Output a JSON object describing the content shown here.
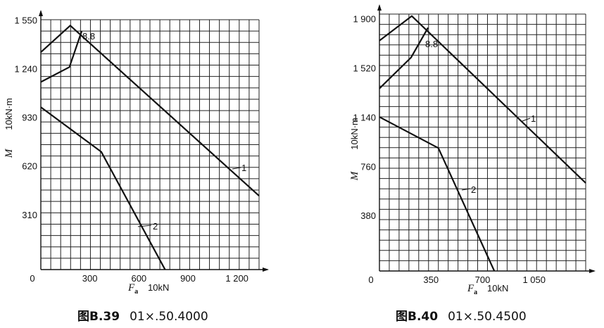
{
  "chart_data": [
    {
      "type": "line",
      "caption_prefix": "图B.39",
      "caption_code": "01×.50.4000",
      "ylabel": "M",
      "yunit": "10kN·m",
      "xlabel": "F",
      "xlabel_sub": "a",
      "xunit": "10kN",
      "origin_label": "0",
      "x_ticks": [
        300,
        600,
        900,
        1200
      ],
      "x_tick_labels": [
        "300",
        "600",
        "900",
        "1 200"
      ],
      "y_ticks": [
        310,
        620,
        930,
        1240,
        1550
      ],
      "y_tick_labels": [
        "310",
        "620",
        "930",
        "1 240",
        "1 550"
      ],
      "xlim": [
        0,
        1335
      ],
      "ylim": [
        0,
        1592
      ],
      "grid": true,
      "series": [
        {
          "name": "1",
          "points": [
            [
              0,
              1385
            ],
            [
              180,
              1555
            ],
            [
              1335,
              470
            ]
          ]
        },
        {
          "name": "8.8",
          "points": [
            [
              0,
              1195
            ],
            [
              175,
              1290
            ],
            [
              250,
              1520
            ]
          ]
        },
        {
          "name": "2",
          "points": [
            [
              0,
              1035
            ],
            [
              370,
              750
            ],
            [
              760,
              0
            ]
          ]
        }
      ]
    },
    {
      "type": "line",
      "caption_prefix": "图B.40",
      "caption_code": "01×.50.4500",
      "ylabel": "M",
      "yunit": "10kN·m",
      "xlabel": "F",
      "xlabel_sub": "a",
      "xunit": "10kN",
      "origin_label": "0",
      "x_ticks": [
        350,
        700,
        1050
      ],
      "x_tick_labels": [
        "350",
        "700",
        "1 050"
      ],
      "y_ticks": [
        380,
        760,
        1140,
        1520,
        1900
      ],
      "y_tick_labels": [
        "380",
        "760",
        "1 140",
        "1 520",
        "1 900"
      ],
      "xlim": [
        0,
        1400
      ],
      "ylim": [
        0,
        1985
      ],
      "grid": true,
      "series": [
        {
          "name": "1",
          "points": [
            [
              0,
              1780
            ],
            [
              220,
              1970
            ],
            [
              1400,
              680
            ]
          ]
        },
        {
          "name": "8.8",
          "points": [
            [
              0,
              1410
            ],
            [
              215,
              1650
            ],
            [
              330,
              1880
            ]
          ]
        },
        {
          "name": "2",
          "points": [
            [
              0,
              1190
            ],
            [
              400,
              950
            ],
            [
              780,
              0
            ]
          ]
        }
      ]
    }
  ]
}
